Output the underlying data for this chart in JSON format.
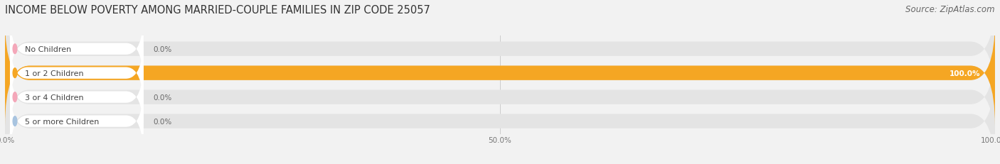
{
  "title": "INCOME BELOW POVERTY AMONG MARRIED-COUPLE FAMILIES IN ZIP CODE 25057",
  "source": "Source: ZipAtlas.com",
  "categories": [
    "No Children",
    "1 or 2 Children",
    "3 or 4 Children",
    "5 or more Children"
  ],
  "values": [
    0.0,
    100.0,
    0.0,
    0.0
  ],
  "bar_colors": [
    "#f4a7b9",
    "#f5a623",
    "#f4a7b9",
    "#a8c4e0"
  ],
  "track_color": "#e4e4e4",
  "background_color": "#f2f2f2",
  "xlim": [
    0,
    100
  ],
  "xtick_labels": [
    "0.0%",
    "50.0%",
    "100.0%"
  ],
  "title_fontsize": 10.5,
  "source_fontsize": 8.5,
  "bar_height": 0.6,
  "value_label_fontsize": 7.5,
  "category_fontsize": 8
}
